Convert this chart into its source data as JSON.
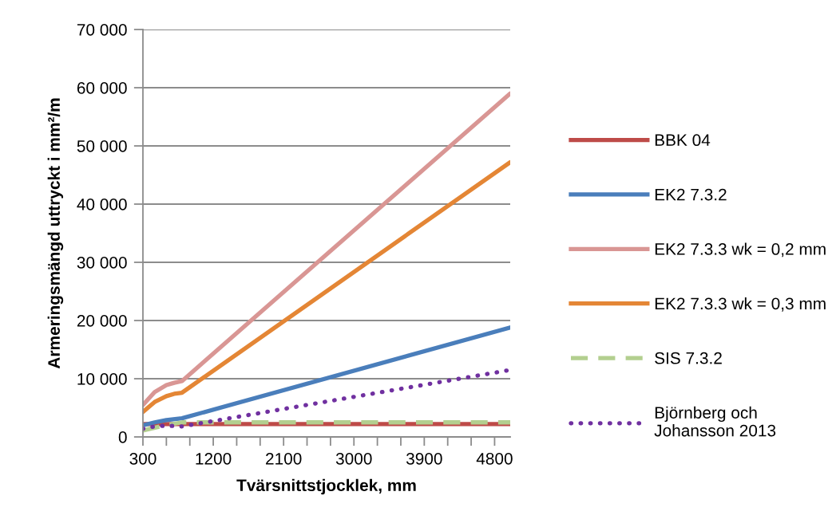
{
  "chart_data": {
    "type": "line",
    "xlabel": "Tvärsnittstjocklek, mm",
    "ylabel": "Armeringsmängd uttryckt i mm²/m",
    "xlim": [
      300,
      5000
    ],
    "xticks": [
      300,
      {
        "value": 600,
        "label": null
      },
      {
        "value": 900,
        "label": null
      },
      1200,
      {
        "value": 1500,
        "label": null
      },
      {
        "value": 1800,
        "label": null
      },
      2100,
      {
        "value": 2400,
        "label": null
      },
      {
        "value": 2700,
        "label": null
      },
      3000,
      {
        "value": 3300,
        "label": null
      },
      {
        "value": 3600,
        "label": null
      },
      3900,
      {
        "value": 4200,
        "label": null
      },
      {
        "value": 4500,
        "label": null
      },
      4800
    ],
    "ylim": [
      0,
      70000
    ],
    "yticks": [
      {
        "value": 0,
        "label": "0"
      },
      {
        "value": 10000,
        "label": "10 000"
      },
      {
        "value": 20000,
        "label": "20 000"
      },
      {
        "value": 30000,
        "label": "30 000"
      },
      {
        "value": 40000,
        "label": "40 000"
      },
      {
        "value": 50000,
        "label": "50 000"
      },
      {
        "value": 60000,
        "label": "60 000"
      },
      {
        "value": 70000,
        "label": "70 000"
      }
    ],
    "grid": "y",
    "legend": "right",
    "marker": "none",
    "series": [
      {
        "name": "BBK 04",
        "color": "#be4b48",
        "line_style": "solid",
        "x": [
          300,
          5000
        ],
        "values": [
          2200,
          2200
        ]
      },
      {
        "name": "EK2 7.3.2",
        "color": "#4a7ebb",
        "line_style": "solid",
        "x": [
          300,
          450,
          600,
          800,
          5000
        ],
        "values": [
          2000,
          2500,
          2900,
          3200,
          18800
        ]
      },
      {
        "name": "EK2 7.3.3 wk = 0,2 mm",
        "color": "#d99694",
        "line_style": "solid",
        "x": [
          300,
          450,
          600,
          700,
          800,
          5000
        ],
        "values": [
          5500,
          7700,
          8900,
          9300,
          9600,
          59000
        ]
      },
      {
        "name": "EK2 7.3.3 wk = 0,3 mm",
        "color": "#e48635",
        "line_style": "solid",
        "x": [
          300,
          450,
          600,
          700,
          800,
          5000
        ],
        "values": [
          4300,
          6000,
          7000,
          7400,
          7600,
          47200
        ]
      },
      {
        "name": "SIS 7.3.2",
        "color": "#b3cf8f",
        "line_style": "dashed",
        "x": [
          300,
          550,
          800,
          5000
        ],
        "values": [
          1100,
          1900,
          2500,
          2500
        ]
      },
      {
        "name": "Björnberg och\nJohansson 2013",
        "color": "#7030a0",
        "line_style": "dotted",
        "x": [
          300,
          400,
          550,
          700,
          800,
          5000
        ],
        "values": [
          1400,
          1700,
          1900,
          1900,
          1800,
          11500
        ]
      }
    ]
  }
}
